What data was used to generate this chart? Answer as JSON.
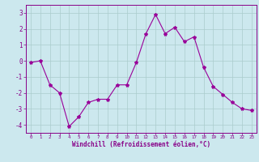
{
  "x": [
    0,
    1,
    2,
    3,
    4,
    5,
    6,
    7,
    8,
    9,
    10,
    11,
    12,
    13,
    14,
    15,
    16,
    17,
    18,
    19,
    20,
    21,
    22,
    23
  ],
  "y": [
    -0.1,
    0.0,
    -1.5,
    -2.0,
    -4.1,
    -3.5,
    -2.6,
    -2.4,
    -2.4,
    -1.5,
    -1.5,
    -0.1,
    1.7,
    2.9,
    1.7,
    2.1,
    1.2,
    1.5,
    -0.4,
    -1.6,
    -2.1,
    -2.6,
    -3.0,
    -3.1
  ],
  "line_color": "#990099",
  "marker": "*",
  "marker_size": 3,
  "bg_color": "#cce8ee",
  "grid_color": "#aacccc",
  "xlabel": "Windchill (Refroidissement éolien,°C)",
  "xlabel_color": "#880088",
  "tick_color": "#880088",
  "ylim": [
    -4.5,
    3.5
  ],
  "xlim": [
    -0.5,
    23.5
  ],
  "yticks": [
    -4,
    -3,
    -2,
    -1,
    0,
    1,
    2,
    3
  ],
  "xticks": [
    0,
    1,
    2,
    3,
    4,
    5,
    6,
    7,
    8,
    9,
    10,
    11,
    12,
    13,
    14,
    15,
    16,
    17,
    18,
    19,
    20,
    21,
    22,
    23
  ]
}
